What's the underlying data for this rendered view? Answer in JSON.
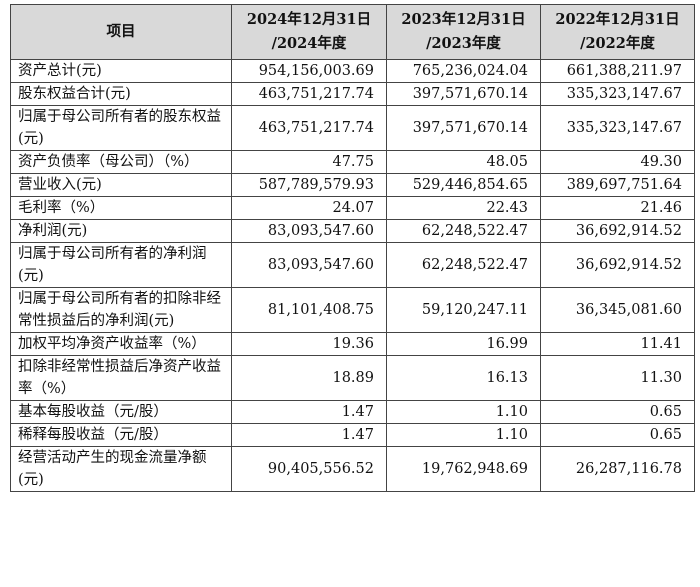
{
  "table": {
    "headers": [
      {
        "line1": "项目",
        "line2": ""
      },
      {
        "line1": "2024年12月31日",
        "line2": "/2024年度"
      },
      {
        "line1": "2023年12月31日",
        "line2": "/2023年度"
      },
      {
        "line1": "2022年12月31日",
        "line2": "/2022年度"
      }
    ],
    "rows": [
      {
        "label": "资产总计(元)",
        "v2024": "954,156,003.69",
        "v2023": "765,236,024.04",
        "v2022": "661,388,211.97"
      },
      {
        "label": "股东权益合计(元)",
        "v2024": "463,751,217.74",
        "v2023": "397,571,670.14",
        "v2022": "335,323,147.67"
      },
      {
        "label": "归属于母公司所有者的股东权益(元)",
        "v2024": "463,751,217.74",
        "v2023": "397,571,670.14",
        "v2022": "335,323,147.67"
      },
      {
        "label": "资产负债率（母公司）（%）",
        "v2024": "47.75",
        "v2023": "48.05",
        "v2022": "49.30"
      },
      {
        "label": "营业收入(元)",
        "v2024": "587,789,579.93",
        "v2023": "529,446,854.65",
        "v2022": "389,697,751.64"
      },
      {
        "label": "毛利率（%）",
        "v2024": "24.07",
        "v2023": "22.43",
        "v2022": "21.46"
      },
      {
        "label": "净利润(元)",
        "v2024": "83,093,547.60",
        "v2023": "62,248,522.47",
        "v2022": "36,692,914.52"
      },
      {
        "label": "归属于母公司所有者的净利润(元)",
        "v2024": "83,093,547.60",
        "v2023": "62,248,522.47",
        "v2022": "36,692,914.52"
      },
      {
        "label": "归属于母公司所有者的扣除非经常性损益后的净利润(元)",
        "v2024": "81,101,408.75",
        "v2023": "59,120,247.11",
        "v2022": "36,345,081.60"
      },
      {
        "label": "加权平均净资产收益率（%）",
        "v2024": "19.36",
        "v2023": "16.99",
        "v2022": "11.41"
      },
      {
        "label": "扣除非经常性损益后净资产收益率（%）",
        "v2024": "18.89",
        "v2023": "16.13",
        "v2022": "11.30"
      },
      {
        "label": "基本每股收益（元/股）",
        "v2024": "1.47",
        "v2023": "1.10",
        "v2022": "0.65"
      },
      {
        "label": "稀释每股收益（元/股）",
        "v2024": "1.47",
        "v2023": "1.10",
        "v2022": "0.65"
      },
      {
        "label": "经营活动产生的现金流量净额(元)",
        "v2024": "90,405,556.52",
        "v2023": "19,762,948.69",
        "v2022": "26,287,116.78"
      }
    ]
  }
}
